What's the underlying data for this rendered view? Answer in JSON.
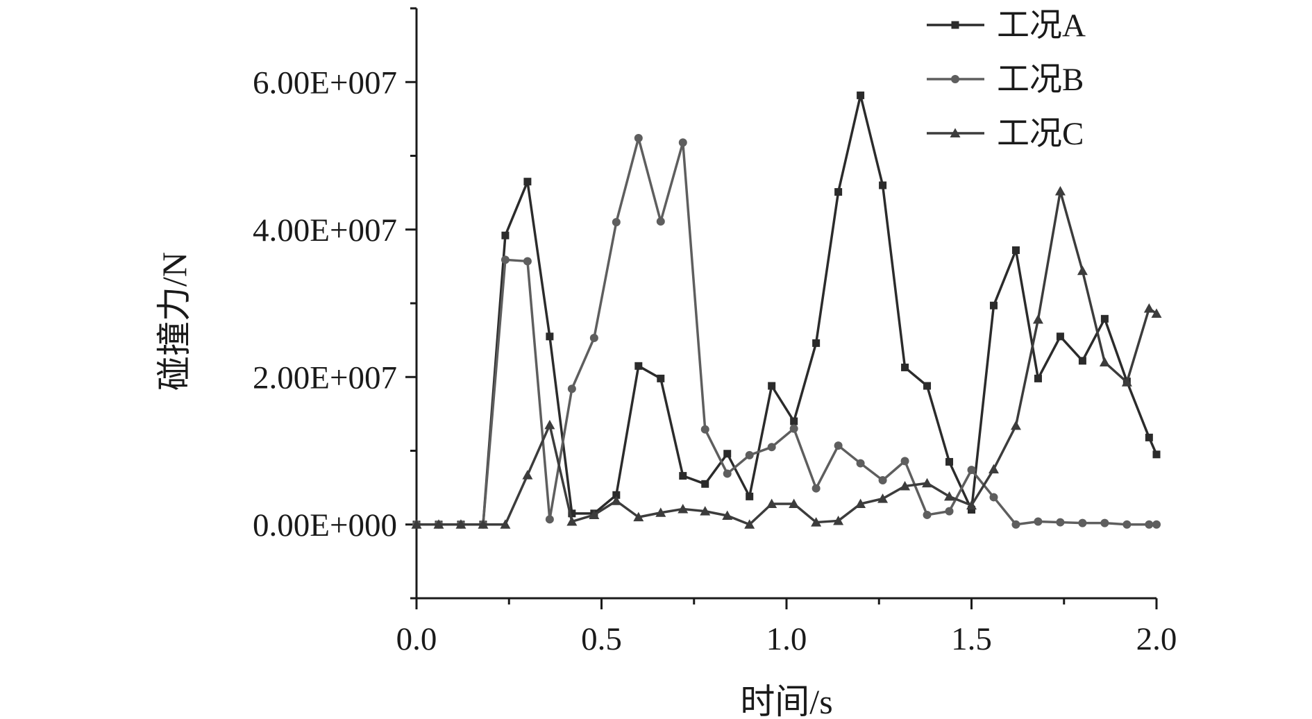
{
  "chart_data": {
    "type": "line",
    "title": "",
    "xlabel": "时间/s",
    "ylabel": "碰撞力/N",
    "xlim": [
      0.0,
      2.0
    ],
    "ylim": [
      -10000000,
      70000000
    ],
    "x_ticks": [
      0.0,
      0.5,
      1.0,
      1.5,
      2.0
    ],
    "x_tick_labels": [
      "0.0",
      "0.5",
      "1.0",
      "1.5",
      "2.0"
    ],
    "y_ticks": [
      0,
      20000000,
      40000000,
      60000000
    ],
    "y_tick_labels": [
      "0.00E+000",
      "2.00E+007",
      "4.00E+007",
      "6.00E+007"
    ],
    "grid": false,
    "legend_position": "top-right",
    "series": [
      {
        "name": "工况A",
        "color": "#2b2b2b",
        "marker": "square",
        "x": [
          0,
          0.06,
          0.12,
          0.18,
          0.24,
          0.3,
          0.36,
          0.42,
          0.48,
          0.54,
          0.6,
          0.66,
          0.72,
          0.78,
          0.84,
          0.9,
          0.96,
          1.02,
          1.08,
          1.14,
          1.2,
          1.26,
          1.32,
          1.38,
          1.44,
          1.5,
          1.56,
          1.62,
          1.68,
          1.74,
          1.8,
          1.86,
          1.92,
          1.98,
          2.0
        ],
        "y": [
          0,
          0,
          0,
          0,
          39200000,
          46500000,
          25500000,
          1500000,
          1500000,
          4000000,
          21500000,
          19800000,
          6600000,
          5500000,
          9600000,
          3800000,
          18800000,
          14000000,
          24600000,
          45100000,
          58200000,
          46000000,
          21300000,
          18800000,
          8500000,
          2000000,
          29700000,
          37200000,
          19800000,
          25500000,
          22200000,
          27900000,
          19400000,
          11800000,
          9500000
        ]
      },
      {
        "name": "工况B",
        "color": "#5e5e5e",
        "marker": "circle",
        "x": [
          0,
          0.06,
          0.12,
          0.18,
          0.24,
          0.3,
          0.36,
          0.42,
          0.48,
          0.54,
          0.6,
          0.66,
          0.72,
          0.78,
          0.84,
          0.9,
          0.96,
          1.02,
          1.08,
          1.14,
          1.2,
          1.26,
          1.32,
          1.38,
          1.44,
          1.5,
          1.56,
          1.62,
          1.68,
          1.74,
          1.8,
          1.86,
          1.92,
          1.98,
          2.0
        ],
        "y": [
          0,
          0,
          0,
          0,
          35900000,
          35700000,
          700000,
          18400000,
          25300000,
          41000000,
          52400000,
          41100000,
          51800000,
          12900000,
          6900000,
          9400000,
          10500000,
          13000000,
          4900000,
          10700000,
          8300000,
          6000000,
          8600000,
          1300000,
          1800000,
          7400000,
          3700000,
          0,
          400000,
          300000,
          200000,
          200000,
          0,
          0,
          0
        ]
      },
      {
        "name": "工况C",
        "color": "#3c3c3c",
        "marker": "triangle",
        "x": [
          0,
          0.06,
          0.12,
          0.18,
          0.24,
          0.3,
          0.36,
          0.42,
          0.48,
          0.54,
          0.6,
          0.66,
          0.72,
          0.78,
          0.84,
          0.9,
          0.96,
          1.02,
          1.08,
          1.14,
          1.2,
          1.26,
          1.32,
          1.38,
          1.44,
          1.5,
          1.56,
          1.62,
          1.68,
          1.74,
          1.8,
          1.86,
          1.92,
          1.98,
          2.0
        ],
        "y": [
          0,
          0,
          0,
          0,
          0,
          6700000,
          13500000,
          400000,
          1300000,
          3200000,
          1000000,
          1600000,
          2100000,
          1800000,
          1200000,
          0,
          2800000,
          2800000,
          300000,
          500000,
          2800000,
          3500000,
          5200000,
          5600000,
          3800000,
          2600000,
          7500000,
          13400000,
          27800000,
          45200000,
          34400000,
          22000000,
          19300000,
          29300000,
          28600000
        ]
      }
    ]
  }
}
